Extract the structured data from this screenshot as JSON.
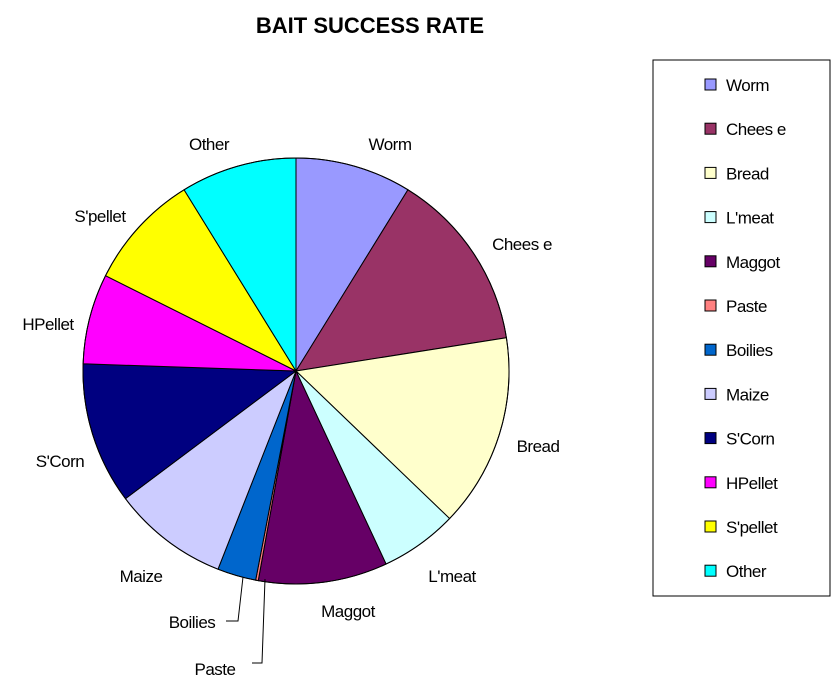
{
  "chart_data": {
    "type": "pie",
    "title": "BAIT SUCCESS RATE",
    "legend": "right",
    "categories": [
      "Worm",
      "Cheese",
      "Bread",
      "L'meat",
      "Maggot",
      "Paste",
      "Boilies",
      "Maize",
      "S'Corn",
      "HPellet",
      "S'pellet",
      "Other"
    ],
    "labels": [
      "Worm",
      "Chees e",
      "Bread",
      "L'meat",
      "Maggot",
      "Paste",
      "Boilies",
      "Maize",
      "S'Corn",
      "HPellet",
      "S'pellet",
      "Other"
    ],
    "legend_labels": [
      "Worm",
      "Chees e",
      "Bread",
      "L'meat",
      "Maggot",
      "Paste",
      "Boilies",
      "Maize",
      "S'Corn",
      "HPellet",
      "S'pellet",
      "Other"
    ],
    "values": [
      9,
      14,
      15,
      6,
      10,
      0.2,
      3,
      9,
      11,
      7,
      9,
      9
    ],
    "colors": [
      "#9999ff",
      "#993366",
      "#ffffcc",
      "#ccffff",
      "#660066",
      "#ff8080",
      "#0066cc",
      "#ccccff",
      "#000080",
      "#ff00ff",
      "#ffff00",
      "#00ffff"
    ]
  }
}
